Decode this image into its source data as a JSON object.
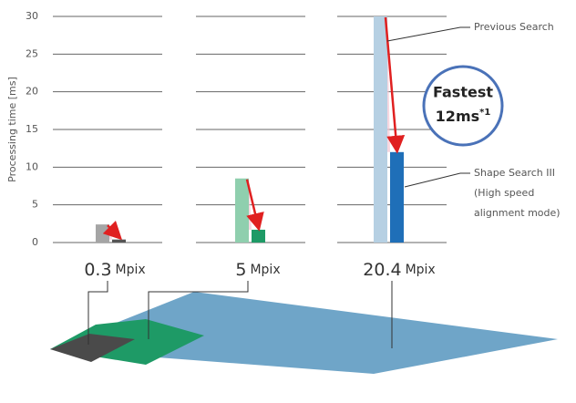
{
  "chart_data": {
    "type": "bar",
    "y_label": "Processing time [ms]",
    "categories": [
      "0.3",
      "5",
      "20.4"
    ],
    "unit_label": "Mpix",
    "series": [
      {
        "name": "Previous Search",
        "colors": [
          "#a5a5a5",
          "#8fcfae",
          "#b6d0e3"
        ],
        "values": [
          2.4,
          8.5,
          30
        ]
      },
      {
        "name": "Shape Search III",
        "colors": [
          "#555555",
          "#1e9a66",
          "#1f6fb8"
        ],
        "values": [
          0.4,
          1.7,
          12
        ]
      }
    ],
    "annotations": [
      "(High speed",
      "alignment mode)"
    ],
    "badge": {
      "title": "Fastest",
      "value": "12ms",
      "note": "*1"
    },
    "ylim": [
      0,
      30
    ],
    "yticks": [
      0,
      5,
      10,
      15,
      20,
      25,
      30
    ],
    "grid": true
  }
}
